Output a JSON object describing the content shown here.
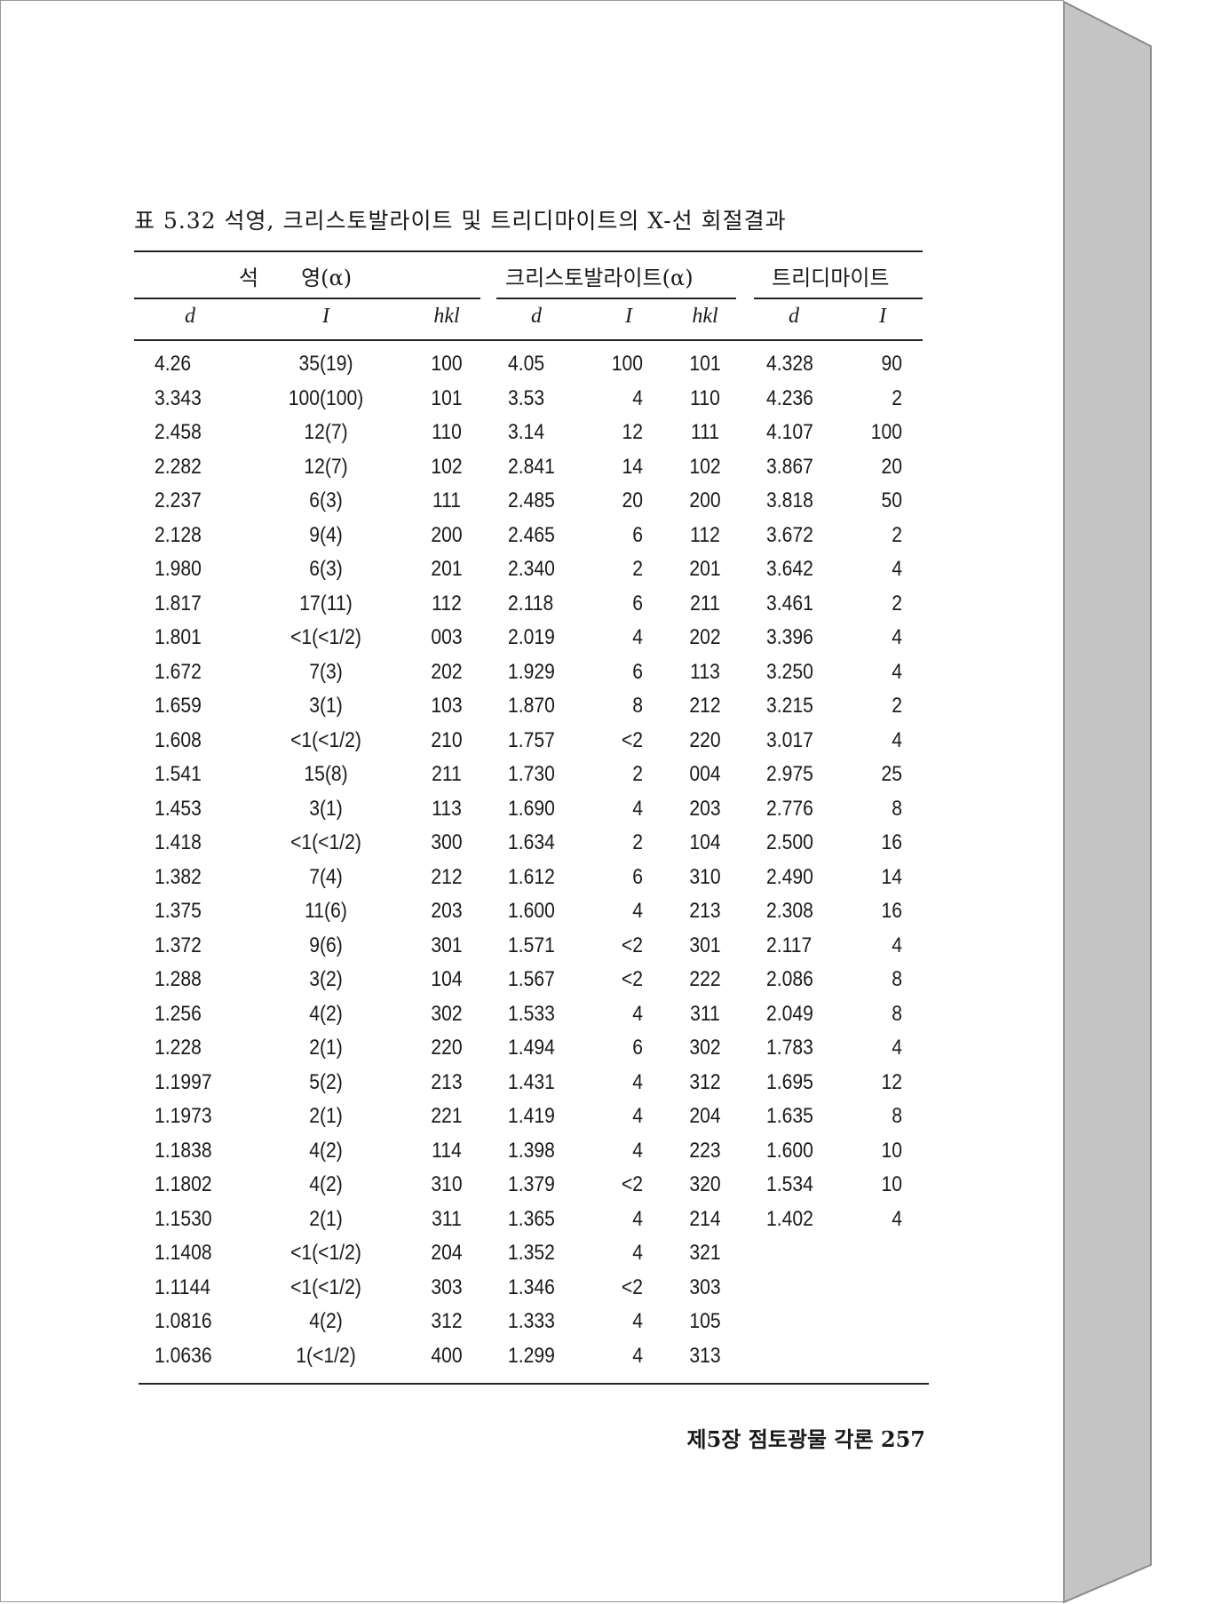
{
  "title": "표 5.32  석영, 크리스토발라이트 및 트리디마이트의 X-선 회절결과",
  "groups": [
    "석　　영(α)",
    "크리스토발라이트(α)",
    "트리디마이트"
  ],
  "column_headers": [
    "d",
    "I",
    "hkl",
    "d",
    "I",
    "hkl",
    "d",
    "I"
  ],
  "rows": [
    [
      "4.26",
      "35(19)",
      "100",
      "4.05",
      "100",
      "101",
      "4.328",
      "90"
    ],
    [
      "3.343",
      "100(100)",
      "101",
      "3.53",
      "4",
      "110",
      "4.236",
      "2"
    ],
    [
      "2.458",
      "12(7)",
      "110",
      "3.14",
      "12",
      "111",
      "4.107",
      "100"
    ],
    [
      "2.282",
      "12(7)",
      "102",
      "2.841",
      "14",
      "102",
      "3.867",
      "20"
    ],
    [
      "2.237",
      "6(3)",
      "111",
      "2.485",
      "20",
      "200",
      "3.818",
      "50"
    ],
    [
      "2.128",
      "9(4)",
      "200",
      "2.465",
      "6",
      "112",
      "3.672",
      "2"
    ],
    [
      "1.980",
      "6(3)",
      "201",
      "2.340",
      "2",
      "201",
      "3.642",
      "4"
    ],
    [
      "1.817",
      "17(11)",
      "112",
      "2.118",
      "6",
      "211",
      "3.461",
      "2"
    ],
    [
      "1.801",
      "<1(<1/2)",
      "003",
      "2.019",
      "4",
      "202",
      "3.396",
      "4"
    ],
    [
      "1.672",
      "7(3)",
      "202",
      "1.929",
      "6",
      "113",
      "3.250",
      "4"
    ],
    [
      "1.659",
      "3(1)",
      "103",
      "1.870",
      "8",
      "212",
      "3.215",
      "2"
    ],
    [
      "1.608",
      "<1(<1/2)",
      "210",
      "1.757",
      "<2",
      "220",
      "3.017",
      "4"
    ],
    [
      "1.541",
      "15(8)",
      "211",
      "1.730",
      "2",
      "004",
      "2.975",
      "25"
    ],
    [
      "1.453",
      "3(1)",
      "113",
      "1.690",
      "4",
      "203",
      "2.776",
      "8"
    ],
    [
      "1.418",
      "<1(<1/2)",
      "300",
      "1.634",
      "2",
      "104",
      "2.500",
      "16"
    ],
    [
      "1.382",
      "7(4)",
      "212",
      "1.612",
      "6",
      "310",
      "2.490",
      "14"
    ],
    [
      "1.375",
      "11(6)",
      "203",
      "1.600",
      "4",
      "213",
      "2.308",
      "16"
    ],
    [
      "1.372",
      "9(6)",
      "301",
      "1.571",
      "<2",
      "301",
      "2.117",
      "4"
    ],
    [
      "1.288",
      "3(2)",
      "104",
      "1.567",
      "<2",
      "222",
      "2.086",
      "8"
    ],
    [
      "1.256",
      "4(2)",
      "302",
      "1.533",
      "4",
      "311",
      "2.049",
      "8"
    ],
    [
      "1.228",
      "2(1)",
      "220",
      "1.494",
      "6",
      "302",
      "1.783",
      "4"
    ],
    [
      "1.1997",
      "5(2)",
      "213",
      "1.431",
      "4",
      "312",
      "1.695",
      "12"
    ],
    [
      "1.1973",
      "2(1)",
      "221",
      "1.419",
      "4",
      "204",
      "1.635",
      "8"
    ],
    [
      "1.1838",
      "4(2)",
      "114",
      "1.398",
      "4",
      "223",
      "1.600",
      "10"
    ],
    [
      "1.1802",
      "4(2)",
      "310",
      "1.379",
      "<2",
      "320",
      "1.534",
      "10"
    ],
    [
      "1.1530",
      "2(1)",
      "311",
      "1.365",
      "4",
      "214",
      "1.402",
      "4"
    ],
    [
      "1.1408",
      "<1(<1/2)",
      "204",
      "1.352",
      "4",
      "321",
      "",
      ""
    ],
    [
      "1.1144",
      "<1(<1/2)",
      "303",
      "1.346",
      "<2",
      "303",
      "",
      ""
    ],
    [
      "1.0816",
      "4(2)",
      "312",
      "1.333",
      "4",
      "105",
      "",
      ""
    ],
    [
      "1.0636",
      "1(<1/2)",
      "400",
      "1.299",
      "4",
      "313",
      "",
      ""
    ]
  ],
  "footer": "제5장  점토광물 각론  257",
  "colors": {
    "page": "#ffffff",
    "book_side": "#c4c4c4",
    "text": "#1a1a1a"
  }
}
